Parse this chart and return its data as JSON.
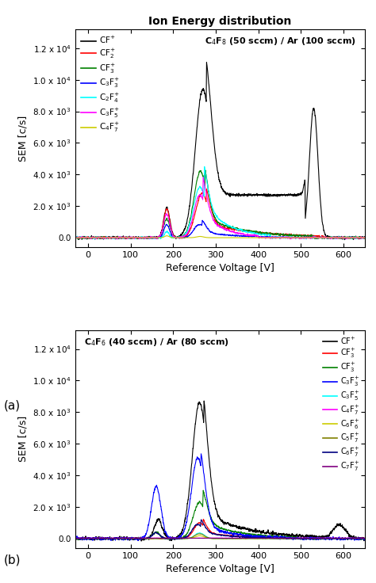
{
  "title": "Ion Energy distribution",
  "panel_a": {
    "inset_label": "C$_4$F$_8$ (50 sccm) / Ar (100 sccm)",
    "xlabel": "Reference Voltage [V]",
    "ylabel": "SEM [c/s]",
    "xlim": [
      -30,
      650
    ],
    "ylim": [
      -600,
      13200
    ],
    "yticks": [
      0,
      2000,
      4000,
      6000,
      8000,
      10000,
      12000
    ],
    "ytick_labels": [
      "0.0",
      "2.0 x 10$^{3}$",
      "4.0 x 10$^{3}$",
      "6.0 x 10$^{3}$",
      "8.0 x 10$^{3}$",
      "1.0 x 10$^{4}$",
      "1.2 x 10$^{4}$"
    ],
    "xticks": [
      0,
      100,
      200,
      300,
      400,
      500,
      600
    ],
    "panel_label": "(a)",
    "legend_labels": [
      "CF$^{+}$",
      "CF$_2^{+}$",
      "CF$_3^{+}$",
      "C$_3$F$_3^{+}$",
      "C$_2$F$_4^{+}$",
      "C$_3$F$_5^{+}$",
      "C$_4$F$_7^{+}$"
    ],
    "legend_colors": [
      "black",
      "red",
      "green",
      "blue",
      "cyan",
      "magenta",
      "#cccc00"
    ]
  },
  "panel_b": {
    "inset_label": "C$_4$F$_6$ (40 sccm) / Ar (80 sccm)",
    "xlabel": "Reference Voltage [V]",
    "ylabel": "SEM [c/s]",
    "xlim": [
      -30,
      650
    ],
    "ylim": [
      -600,
      13200
    ],
    "yticks": [
      0,
      2000,
      4000,
      6000,
      8000,
      10000,
      12000
    ],
    "ytick_labels": [
      "0.0",
      "2.0 x 10$^{3}$",
      "4.0 x 10$^{3}$",
      "6.0 x 10$^{3}$",
      "8.0 x 10$^{3}$",
      "1.0 x 10$^{4}$",
      "1.2 x 10$^{4}$"
    ],
    "xticks": [
      0,
      100,
      200,
      300,
      400,
      500,
      600
    ],
    "panel_label": "(b)",
    "legend_labels": [
      "CF$^{+}$",
      "CF$_3^{+}$",
      "CF$_3^{+}$",
      "C$_3$F$_3^{+}$",
      "C$_3$F$_5^{+}$",
      "C$_4$F$_7^{+}$",
      "C$_6$F$_6^{+}$",
      "C$_5$F$_7^{+}$",
      "C$_6$F$_7^{+}$",
      "C$_7$F$_7^{+}$"
    ],
    "legend_colors": [
      "black",
      "red",
      "green",
      "blue",
      "cyan",
      "magenta",
      "#cccc00",
      "#808000",
      "#000080",
      "#800080"
    ]
  }
}
